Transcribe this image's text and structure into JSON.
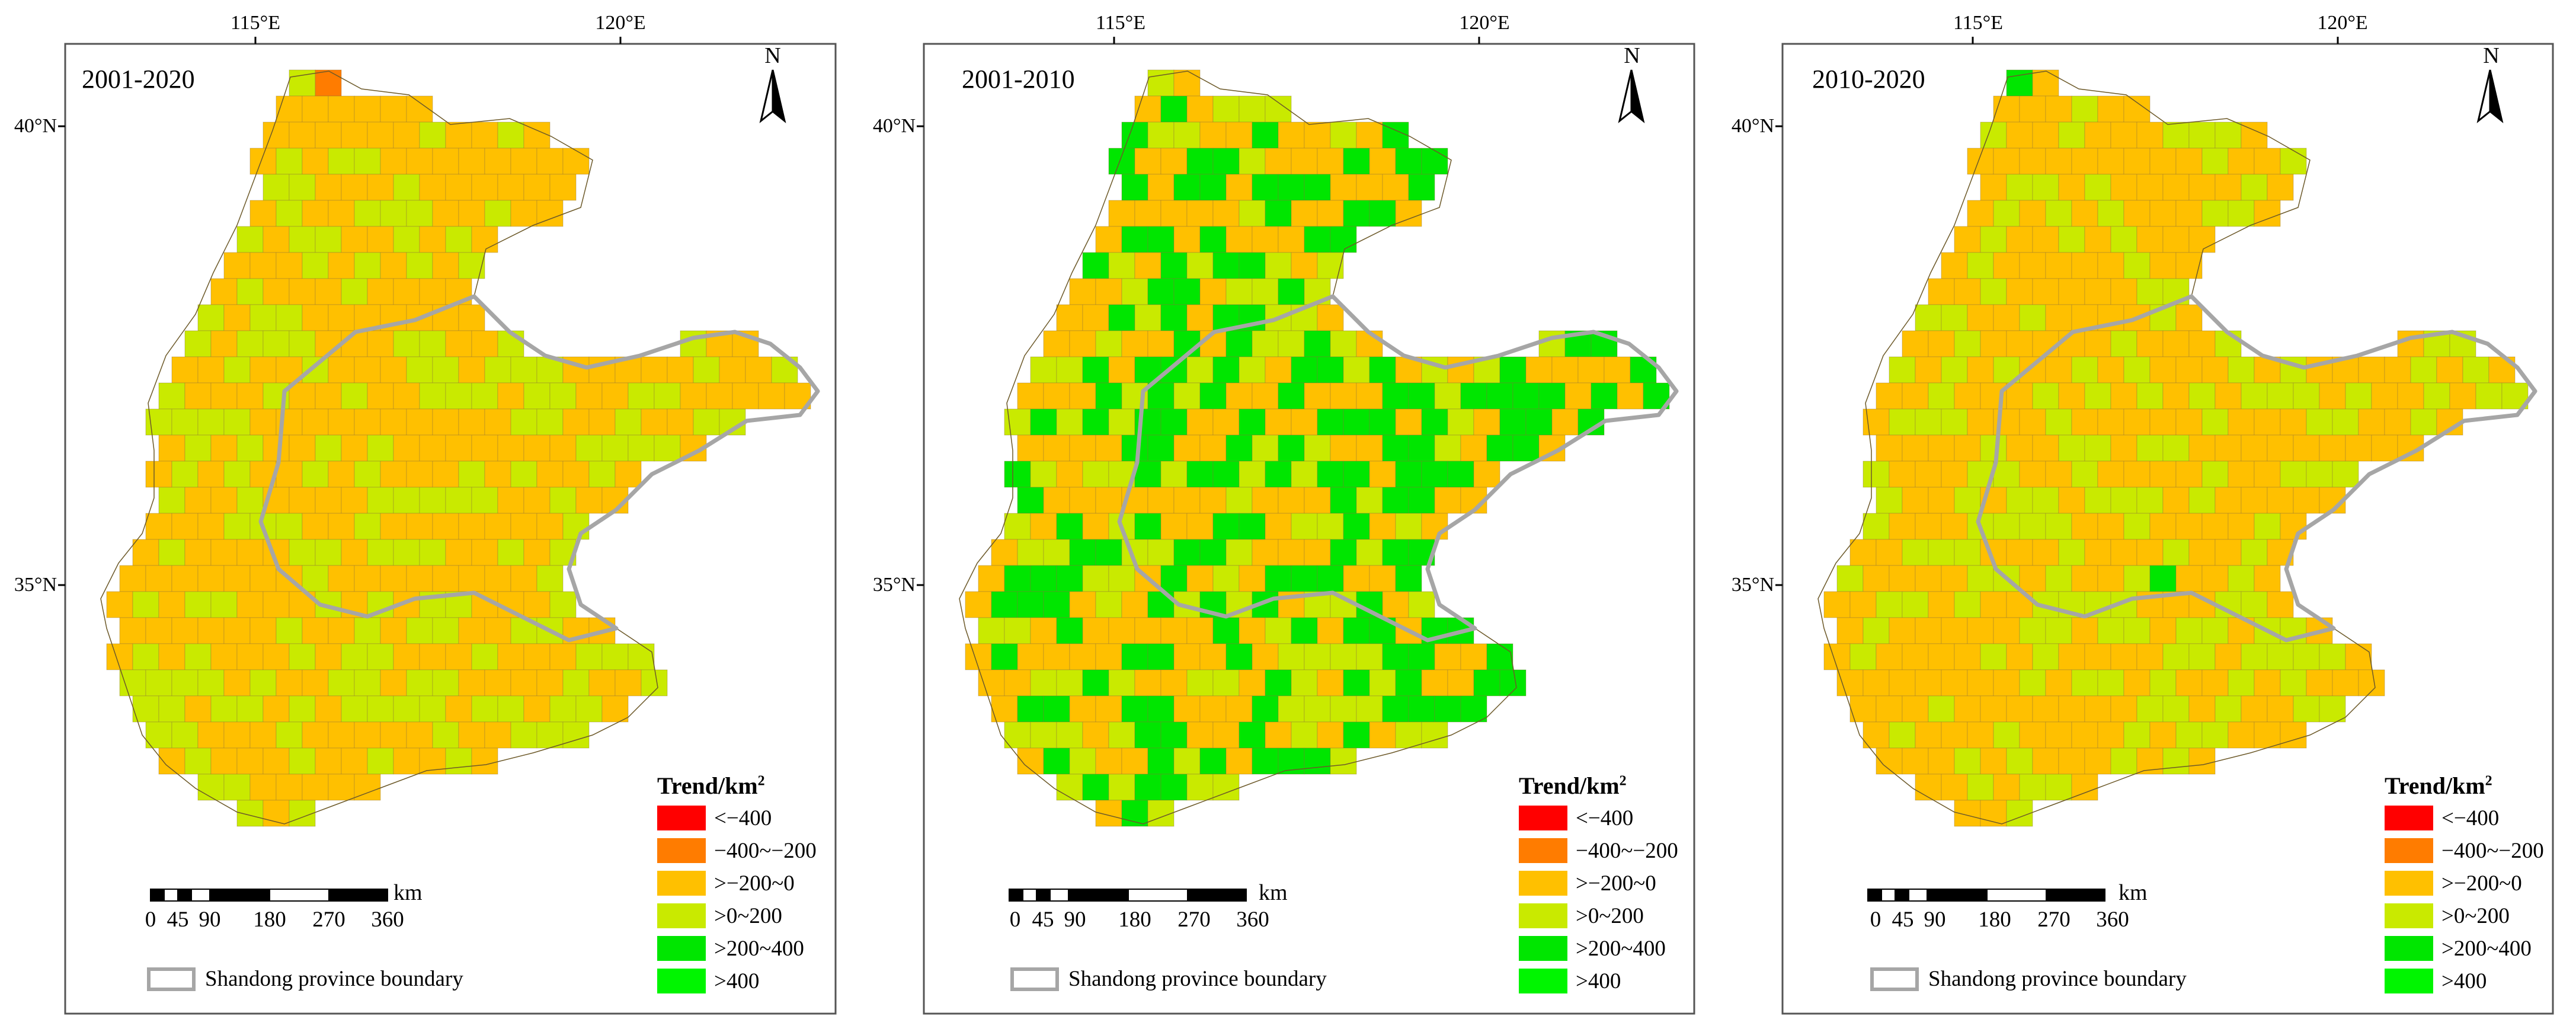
{
  "figure": {
    "panels": [
      {
        "title": "2001-2020",
        "colors": [
          "#c9ea00",
          "#ffc000",
          "#c9ea00",
          "#00e600",
          "#ffc000",
          "#c9ea00",
          "#ff7c00",
          "#c9ea00",
          "#ffc000",
          "#00e600",
          "#c9ea00",
          "#ffc000",
          "#c9ea00",
          "#ff7c00",
          "#00e600",
          "#c9ea00",
          "#ffc000",
          "#ff0000",
          "#c9ea00",
          "#ffc000"
        ]
      },
      {
        "title": "2001-2010",
        "colors": [
          "#ffc000",
          "#c9ea00",
          "#ffc000",
          "#c9ea00",
          "#00e600",
          "#ffc000",
          "#ff7c00",
          "#c9ea00",
          "#ffc000",
          "#ff0000",
          "#c9ea00",
          "#ffc000",
          "#00e600",
          "#c9ea00",
          "#ffc000",
          "#ff7c00",
          "#c9ea00",
          "#ff0000",
          "#ffc000",
          "#00e600"
        ]
      },
      {
        "title": "2010-2020",
        "colors": [
          "#c9ea00",
          "#ffc000",
          "#c9ea00",
          "#00e600",
          "#ffc000",
          "#c9ea00",
          "#ffc000",
          "#ff7c00",
          "#c9ea00",
          "#00e600",
          "#ffc000",
          "#c9ea00",
          "#ffc000",
          "#00e600",
          "#c9ea00",
          "#ff7c00",
          "#ffc000",
          "#ff0000",
          "#c9ea00",
          "#00e600"
        ]
      }
    ],
    "axes": {
      "longitude_ticks": [
        "115°E",
        "120°E"
      ],
      "latitude_ticks": [
        "40°N",
        "35°N"
      ]
    },
    "north_arrow": {
      "letter": "N"
    },
    "legend": {
      "title_main": "Trend/km",
      "title_sup": "2",
      "classes": [
        {
          "label": "<−400",
          "color": "#ff0000"
        },
        {
          "label": "−400~−200",
          "color": "#ff7c00"
        },
        {
          "label": ">−200~0",
          "color": "#ffc000"
        },
        {
          "label": ">0~200",
          "color": "#c9ea00"
        },
        {
          "label": ">200~400",
          "color": "#00e600"
        },
        {
          "label": ">400",
          "color": "#00f500"
        }
      ]
    },
    "scale_bar": {
      "ticks": [
        "0",
        "45",
        "90",
        "180",
        "270",
        "360"
      ],
      "unit": "km"
    },
    "boundary_legend": {
      "label": "Shandong province boundary",
      "color": "#a6a6a6"
    }
  }
}
